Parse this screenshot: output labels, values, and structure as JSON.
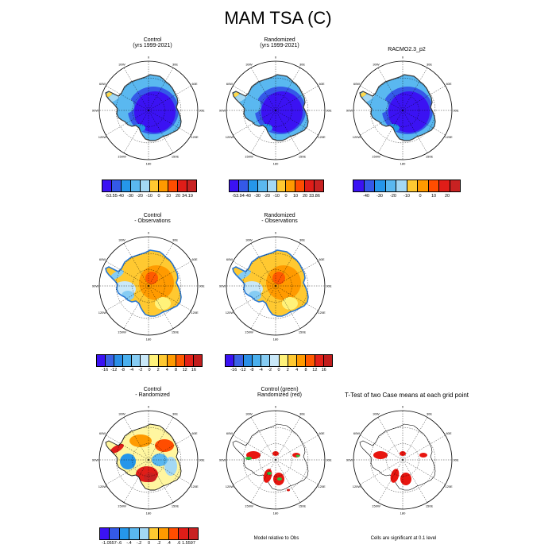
{
  "title": "MAM TSA (C)",
  "colors": {
    "blues": [
      "#3b12f3",
      "#2a56e6",
      "#1f8fe8",
      "#53b6ef",
      "#a9dcf5"
    ],
    "warm": [
      "#fff27a",
      "#ffc931",
      "#ff9a00",
      "#ff5a00",
      "#e32119",
      "#c21d1d"
    ],
    "abs": [
      "#3b12f3",
      "#3459e8",
      "#2596ea",
      "#5ab8f0",
      "#a3d8f4",
      "#ffc931",
      "#ff9a00",
      "#ff4d00",
      "#e01d18",
      "#c82222"
    ],
    "diff": [
      "#3b12f3",
      "#3a62e6",
      "#2a8fe6",
      "#4ab0ee",
      "#86ccf3",
      "#c9e8f8",
      "#fff27a",
      "#ffc931",
      "#ff9a00",
      "#ff5a00",
      "#e32119",
      "#c21d1d"
    ],
    "sig_red": "#e8150f",
    "sig_green": "#2dbb3a"
  },
  "longitudes": [
    "0",
    "30E",
    "60E",
    "90E",
    "120E",
    "150E",
    "180",
    "150W",
    "120W",
    "90W",
    "60W",
    "30W"
  ],
  "panels": [
    {
      "id": "control",
      "title_lines": [
        "Control",
        "(yrs 1999-2021)"
      ],
      "colorbar": [
        "-53.55",
        "-40",
        "-30",
        "-20",
        "-10",
        "0",
        "10",
        "20",
        "34.19"
      ]
    },
    {
      "id": "randomized",
      "title_lines": [
        "Randomized",
        "(yrs 1999-2021)"
      ],
      "colorbar": [
        "-53.94",
        "-40",
        "-30",
        "-20",
        "-10",
        "0",
        "10",
        "20",
        "33.86"
      ]
    },
    {
      "id": "racmo",
      "title_lines": [
        "RACMO2.3_p2"
      ],
      "colorbar": [
        "-40",
        "-30",
        "-20",
        "-10",
        "0",
        "10",
        "20"
      ]
    },
    {
      "id": "control-obs",
      "title_lines": [
        "Control",
        "- Observations"
      ],
      "colorbar": [
        "-16",
        "-12",
        "-8",
        "-4",
        "-2",
        "0",
        "2",
        "4",
        "8",
        "12",
        "16"
      ]
    },
    {
      "id": "randomized-obs",
      "title_lines": [
        "Randomized",
        "- Observations"
      ],
      "colorbar": [
        "-16",
        "-12",
        "-8",
        "-4",
        "-2",
        "0",
        "2",
        "4",
        "8",
        "12",
        "16"
      ]
    },
    {
      "id": "control-randomized",
      "title_lines": [
        "Control",
        "- Randomized"
      ],
      "colorbar": [
        "-1.0557",
        "-.6",
        "-.4",
        "-.2",
        "0",
        ".2",
        ".4",
        ".6",
        "1.5597"
      ]
    },
    {
      "id": "significance-model-obs",
      "title_lines": [
        "Control (green)",
        "Randomized (red)"
      ],
      "note": "Model relative to Obs"
    },
    {
      "id": "ttest",
      "title_lines": [
        "T-Test of two Case means at each grid point"
      ],
      "note": "Cells are significant at 0.1 level"
    }
  ]
}
